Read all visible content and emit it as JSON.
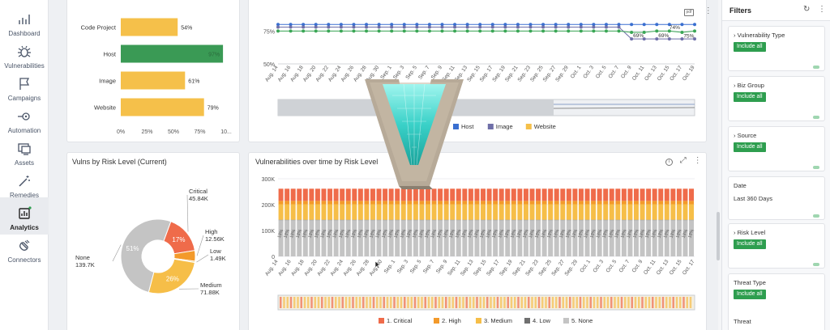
{
  "nav": {
    "items": [
      {
        "label": "Dashboard",
        "icon": "chart-icon"
      },
      {
        "label": "Vulnerabilities",
        "icon": "bug-icon"
      },
      {
        "label": "Campaigns",
        "icon": "flag-icon"
      },
      {
        "label": "Automation",
        "icon": "automation-icon"
      },
      {
        "label": "Assets",
        "icon": "monitor-icon"
      },
      {
        "label": "Remedies",
        "icon": "wand-icon"
      },
      {
        "label": "Analytics",
        "icon": "analytics-icon",
        "active": true
      },
      {
        "label": "Connectors",
        "icon": "plug-icon"
      }
    ]
  },
  "top_left_chart": {
    "chart_data": {
      "type": "bar",
      "orientation": "horizontal",
      "categories": [
        "Code Project",
        "Host",
        "Image",
        "Website"
      ],
      "values": [
        54,
        97,
        61,
        79
      ],
      "value_labels": [
        "54%",
        "97%",
        "61%",
        "79%"
      ],
      "colors": [
        "#f5c04a",
        "#3a9a55",
        "#f5c04a",
        "#f5c04a"
      ],
      "xlim": [
        0,
        100
      ],
      "x_ticks": [
        "0%",
        "25%",
        "50%",
        "75%",
        "10..."
      ]
    }
  },
  "top_right_chart": {
    "y_ticks": [
      "75%",
      "50%"
    ],
    "legend": [
      {
        "name": "Host",
        "color": "#3a6fd0"
      },
      {
        "name": "Image",
        "color": "#6f6fa8"
      },
      {
        "name": "Website",
        "color": "#f5c04a"
      }
    ],
    "annotations": [
      "69%",
      "69%",
      "74%",
      "75%"
    ],
    "chart_data": {
      "type": "line",
      "x": [
        "Aug. 14",
        "Aug. 16",
        "Aug. 18",
        "Aug. 20",
        "Aug. 22",
        "Aug. 24",
        "Aug. 26",
        "Aug. 28",
        "Aug. 30",
        "Sep. 1",
        "Sep. 3",
        "Sep. 5",
        "Sep. 7",
        "Sep. 9",
        "Sep. 11",
        "Sep. 13",
        "Sep. 15",
        "Sep. 17",
        "Sep. 19",
        "Sep. 21",
        "Sep. 23",
        "Sep. 25",
        "Sep. 27",
        "Sep. 29",
        "Oct. 1",
        "Oct. 3",
        "Oct. 5",
        "Oct. 7",
        "Oct. 9",
        "Oct. 11",
        "Oct. 13",
        "Oct. 15",
        "Oct. 17",
        "Oct. 19"
      ],
      "series": [
        {
          "name": "Host",
          "values": [
            80,
            80,
            80,
            80,
            80,
            80,
            80,
            80,
            80,
            80,
            80,
            80,
            80,
            80,
            80,
            80,
            80,
            80,
            80,
            80,
            80,
            80,
            80,
            80,
            80,
            80,
            80,
            80,
            80,
            80,
            80,
            80,
            80,
            80
          ]
        },
        {
          "name": "Image",
          "values": [
            78,
            78,
            78,
            78,
            78,
            78,
            78,
            78,
            78,
            78,
            78,
            78,
            78,
            78,
            78,
            78,
            78,
            78,
            78,
            78,
            78,
            78,
            78,
            78,
            78,
            78,
            78,
            78,
            69,
            69,
            69,
            69,
            69,
            69
          ]
        },
        {
          "name": "Website",
          "values": [
            75,
            75,
            75,
            75,
            75,
            75,
            75,
            75,
            75,
            75,
            75,
            75,
            75,
            75,
            75,
            75,
            75,
            75,
            75,
            75,
            75,
            75,
            75,
            75,
            75,
            75,
            75,
            75,
            74,
            74,
            75,
            75,
            74,
            75
          ]
        }
      ],
      "ylim": [
        50,
        82
      ]
    }
  },
  "donut_chart": {
    "title": "Vulns by Risk Level (Current)",
    "chart_data": {
      "type": "pie",
      "categories": [
        "Critical",
        "High",
        "Low",
        "Medium",
        "None"
      ],
      "values": [
        45.84,
        12.56,
        1.49,
        71.88,
        139.7
      ],
      "value_labels": [
        "45.84K",
        "12.56K",
        "1.49K",
        "71.88K",
        "139.7K"
      ],
      "percent_labels": [
        "17%",
        "",
        "",
        "26%",
        "51%"
      ],
      "colors": [
        "#ef6b4a",
        "#f39a2b",
        "#e3c25a",
        "#f6be48",
        "#c4c4c4"
      ]
    }
  },
  "stacked_chart": {
    "title": "Vulnerabilities over time by Risk Level",
    "y_ticks": [
      "300K",
      "200K",
      "100K",
      "0"
    ],
    "bar_label": "18%",
    "legend": [
      {
        "name": "1. Critical",
        "color": "#ef6b4a"
      },
      {
        "name": "2. High",
        "color": "#f39a2b"
      },
      {
        "name": "3. Medium",
        "color": "#f6be48"
      },
      {
        "name": "4. Low",
        "color": "#707070"
      },
      {
        "name": "5. None",
        "color": "#c4c4c4"
      }
    ],
    "chart_data": {
      "type": "bar",
      "stacked": true,
      "x_ticks": [
        "Aug. 14",
        "Aug. 16",
        "Aug. 18",
        "Aug. 20",
        "Aug. 22",
        "Aug. 24",
        "Aug. 26",
        "Aug. 28",
        "Aug. 30",
        "Sep. 1",
        "Sep. 3",
        "Sep. 5",
        "Sep. 7",
        "Sep. 9",
        "Sep. 11",
        "Sep. 13",
        "Sep. 15",
        "Sep. 17",
        "Sep. 19",
        "Sep. 21",
        "Sep. 23",
        "Sep. 25",
        "Sep. 27",
        "Sep. 29",
        "Oct. 1",
        "Oct. 3",
        "Oct. 5",
        "Oct. 7",
        "Oct. 9",
        "Oct. 11",
        "Oct. 13",
        "Oct. 15",
        "Oct. 17"
      ],
      "series": [
        {
          "name": "1. Critical",
          "value": 47000
        },
        {
          "name": "2. High",
          "value": 13000
        },
        {
          "name": "3. Medium",
          "value": 60000
        },
        {
          "name": "4. Low",
          "value": 1500
        },
        {
          "name": "5. None",
          "value": 140000
        }
      ],
      "ylim": [
        0,
        300000
      ]
    }
  },
  "filters": {
    "title": "Filters",
    "items": [
      {
        "label": "Vulnerability Type",
        "chip": "Include all"
      },
      {
        "label": "Biz Group",
        "chip": "Include all"
      },
      {
        "label": "Source",
        "chip": "Include all"
      },
      {
        "label": "Date",
        "value": "Last 360 Days"
      },
      {
        "label": "Risk Level",
        "chip": "Include all"
      },
      {
        "label": "Threat Type",
        "chip": "Include all"
      },
      {
        "label": "Threat"
      }
    ]
  },
  "colors": {
    "accent_green": "#2e9e4f",
    "teal": "#3ad1c8"
  }
}
